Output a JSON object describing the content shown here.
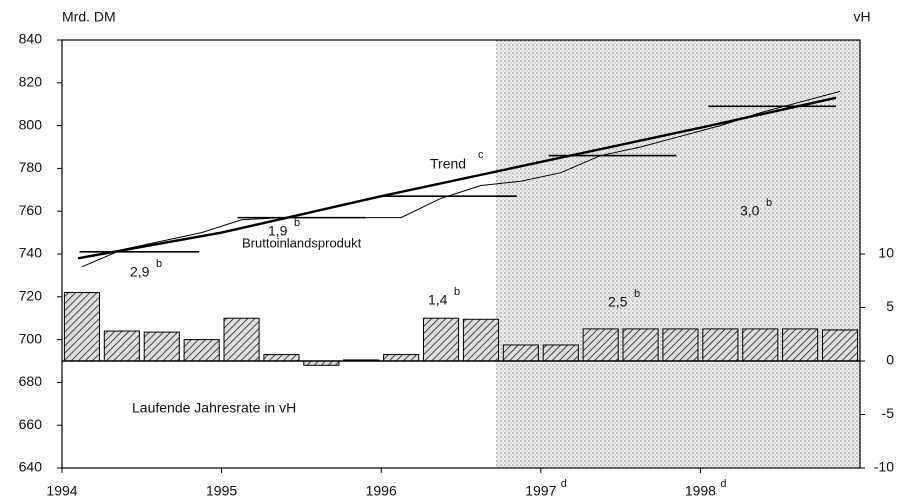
{
  "chart_data": {
    "type": "combo",
    "ylabel": "Mrd. DM",
    "y2label": "vH",
    "xlim": [
      1994,
      1999
    ],
    "xticks": [
      1994,
      1995,
      1996,
      {
        "value": 1997,
        "label": "1997",
        "sup": "d"
      },
      {
        "value": 1998,
        "label": "1998",
        "sup": "d"
      }
    ],
    "ylim": [
      640,
      840
    ],
    "yticks": [
      640,
      660,
      680,
      700,
      720,
      740,
      760,
      780,
      800,
      820,
      840
    ],
    "y2lim": [
      -10,
      30
    ],
    "y2ticks": [
      -10,
      -5,
      0,
      5,
      10
    ],
    "forecast_start": 1996.72,
    "series": [
      {
        "name": "Bruttoinlandsprodukt",
        "type": "line",
        "color": "#000000",
        "x": [
          1994.125,
          1994.375,
          1994.625,
          1994.875,
          1995.125,
          1995.375,
          1995.625,
          1995.875,
          1996.125,
          1996.375,
          1996.625,
          1996.875,
          1997.125,
          1997.375,
          1997.625,
          1997.875,
          1998.125,
          1998.375,
          1998.625,
          1998.875
        ],
        "values": [
          734,
          742,
          746,
          750,
          756,
          757,
          757,
          757,
          757,
          766,
          772,
          774,
          778,
          786,
          790,
          795,
          800,
          806,
          811,
          816
        ]
      },
      {
        "name": "Trend",
        "sup": "c",
        "type": "line",
        "color": "#000000",
        "x": [
          1994.1,
          1995.0,
          1996.0,
          1997.0,
          1998.0,
          1998.85
        ],
        "values": [
          738,
          750,
          767,
          783,
          799,
          813
        ]
      },
      {
        "name": "Laufende Jahresrate in vH",
        "type": "bar",
        "axis": "y2",
        "color": "#000000",
        "x": [
          1994.125,
          1994.375,
          1994.625,
          1994.875,
          1995.125,
          1995.375,
          1995.625,
          1995.875,
          1996.125,
          1996.375,
          1996.625,
          1996.875,
          1997.125,
          1997.375,
          1997.625,
          1997.875,
          1998.125,
          1998.375,
          1998.625,
          1998.875
        ],
        "values": [
          6.4,
          2.8,
          2.7,
          2.0,
          4.0,
          0.6,
          -0.4,
          0.1,
          0.6,
          4.0,
          3.9,
          1.5,
          1.5,
          3.0,
          3.0,
          3.0,
          3.0,
          3.0,
          3.0,
          2.9
        ]
      }
    ],
    "annual_averages": [
      {
        "value": 741,
        "from": 1994.11,
        "to": 1994.86,
        "label": "2,9",
        "sup": "b"
      },
      {
        "value": 757,
        "from": 1995.1,
        "to": 1995.9,
        "label": "1,9",
        "sup": "b"
      },
      {
        "value": 767,
        "from": 1996.0,
        "to": 1996.85,
        "label": "1,4",
        "sup": "b"
      },
      {
        "value": 786,
        "from": 1997.05,
        "to": 1997.85,
        "label": "2,5",
        "sup": "b"
      },
      {
        "value": 809,
        "from": 1998.05,
        "to": 1998.85,
        "label": "3,0",
        "sup": "b"
      }
    ]
  }
}
